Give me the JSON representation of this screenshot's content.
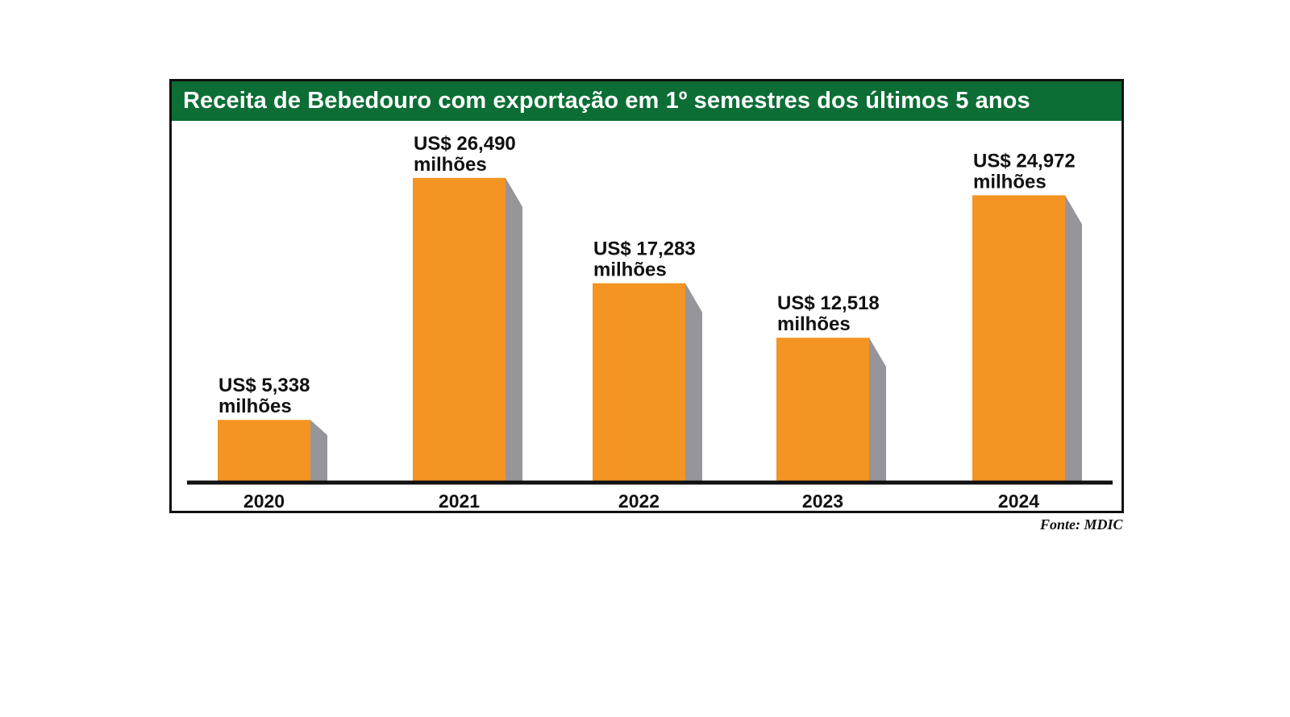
{
  "title": "Receita de Bebedouro com exportação em 1º semestres dos últimos 5 anos",
  "source": "Fonte: MDIC",
  "colors": {
    "bar": "#f39423",
    "bar_side": "#95959a",
    "header": "#0c6e34",
    "axis": "#111111"
  },
  "chart_data": {
    "type": "bar",
    "title": "Receita de Bebedouro com exportação em 1º semestres dos últimos 5 anos",
    "categories": [
      "2020",
      "2021",
      "2022",
      "2023",
      "2024"
    ],
    "values": [
      5.338,
      26.49,
      17.283,
      12.518,
      24.972
    ],
    "value_labels": [
      [
        "US$ 5,338",
        "milhões"
      ],
      [
        "US$ 26,490",
        "milhões"
      ],
      [
        "US$ 17,283",
        "milhões"
      ],
      [
        "US$ 12,518",
        "milhões"
      ],
      [
        "US$ 24,972",
        "milhões"
      ]
    ],
    "xlabel": "",
    "ylabel": "",
    "grid": false,
    "legend": "none"
  }
}
